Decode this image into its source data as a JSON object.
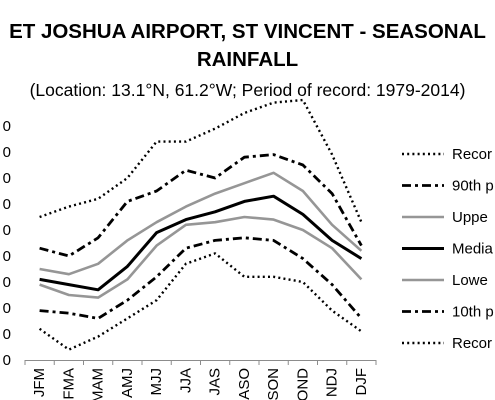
{
  "chart_data": {
    "type": "line",
    "title_line1": "ET JOSHUA AIRPORT, ST VINCENT - SEASONAL",
    "title_line2": "RAINFALL",
    "subtitle": "(Location: 13.1°N, 61.2°W; Period of record: 1979-2014)",
    "categories": [
      "JFM",
      "FMA",
      "MAM",
      "AMJ",
      "MJJ",
      "JJA",
      "JAS",
      "ASO",
      "SON",
      "OND",
      "NDJ",
      "DJF"
    ],
    "y_tick_labels": [
      "0",
      "0",
      "0",
      "0",
      "0",
      "0",
      "0",
      "0",
      "0",
      "0"
    ],
    "y_ticks": [
      0,
      1,
      2,
      3,
      4,
      5,
      6,
      7,
      8,
      9
    ],
    "ylim": [
      0,
      9
    ],
    "grid": false,
    "legend_position": "right",
    "series": [
      {
        "name": "Recor",
        "style": "dotted",
        "color": "#000000",
        "values": [
          5.5,
          5.9,
          6.2,
          7.0,
          8.4,
          8.4,
          8.9,
          9.5,
          9.9,
          10.0,
          7.9,
          5.3
        ]
      },
      {
        "name": "90th p",
        "style": "dashdot",
        "color": "#000000",
        "values": [
          4.3,
          4.0,
          4.7,
          6.1,
          6.5,
          7.3,
          7.0,
          7.8,
          7.9,
          7.5,
          6.4,
          4.4
        ]
      },
      {
        "name": "Uppe",
        "style": "solid",
        "color": "#969696",
        "values": [
          3.5,
          3.3,
          3.7,
          4.6,
          5.3,
          5.9,
          6.4,
          6.8,
          7.2,
          6.5,
          5.2,
          4.2
        ]
      },
      {
        "name": "Media",
        "style": "solid-heavy",
        "color": "#000000",
        "values": [
          3.1,
          2.9,
          2.7,
          3.6,
          4.9,
          5.4,
          5.7,
          6.1,
          6.3,
          5.6,
          4.6,
          3.9
        ]
      },
      {
        "name": "Lowe",
        "style": "solid",
        "color": "#969696",
        "values": [
          2.9,
          2.5,
          2.4,
          3.1,
          4.4,
          5.2,
          5.3,
          5.5,
          5.4,
          5.0,
          4.3,
          3.1
        ]
      },
      {
        "name": "10th p",
        "style": "dashdot",
        "color": "#000000",
        "values": [
          1.9,
          1.8,
          1.6,
          2.3,
          3.2,
          4.3,
          4.6,
          4.7,
          4.6,
          3.9,
          2.9,
          1.6
        ]
      },
      {
        "name": "Recor",
        "style": "dotted",
        "color": "#000000",
        "values": [
          1.2,
          0.4,
          0.9,
          1.6,
          2.3,
          3.7,
          4.1,
          3.2,
          3.2,
          3.0,
          1.9,
          1.1
        ]
      }
    ]
  }
}
